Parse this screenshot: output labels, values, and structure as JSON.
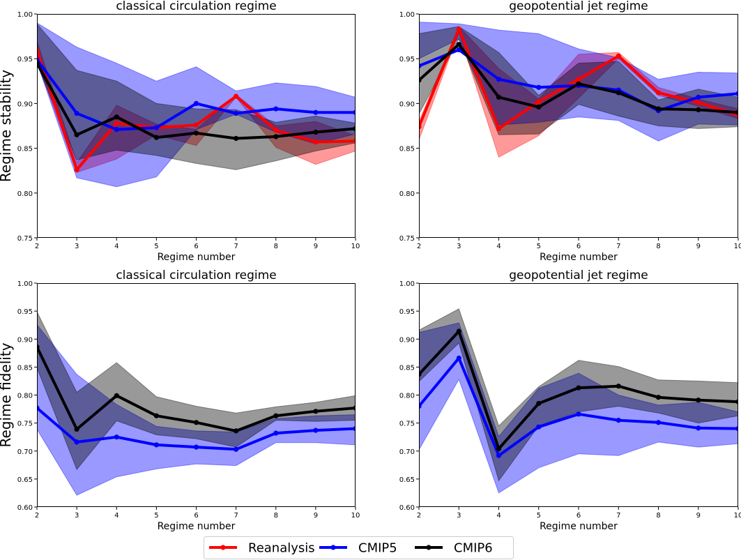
{
  "figure": {
    "legend": {
      "placement": "bottom-center",
      "entries": [
        {
          "label": "Reanalysis",
          "color": "#ff0000"
        },
        {
          "label": "CMIP5",
          "color": "#0000ff"
        },
        {
          "label": "CMIP6",
          "color": "#000000"
        }
      ]
    }
  },
  "chart_data": [
    {
      "type": "line",
      "title": "classical circulation regime",
      "xlabel": "Regime number",
      "ylabel": "Regime stability",
      "x": [
        2,
        3,
        4,
        5,
        6,
        7,
        8,
        9,
        10
      ],
      "xlim": [
        2,
        10
      ],
      "ylim": [
        0.75,
        1.0
      ],
      "xticks": [
        "2",
        "3",
        "4",
        "5",
        "6",
        "7",
        "8",
        "9",
        "10"
      ],
      "yticks": [
        "0.75",
        "0.80",
        "0.85",
        "0.90",
        "0.95",
        "1.00"
      ],
      "grid": false,
      "series": [
        {
          "name": "Reanalysis",
          "color": "#ff0000",
          "values": [
            0.959,
            0.826,
            0.878,
            0.873,
            0.876,
            0.908,
            0.87,
            0.857,
            0.858
          ],
          "band_upper": [
            0.97,
            0.834,
            0.898,
            0.877,
            0.871,
            0.91,
            0.875,
            0.88,
            0.864
          ],
          "band_lower": [
            0.948,
            0.823,
            0.838,
            0.865,
            0.853,
            0.907,
            0.851,
            0.832,
            0.847
          ]
        },
        {
          "name": "CMIP5",
          "color": "#0000ff",
          "values": [
            0.949,
            0.889,
            0.871,
            0.873,
            0.9,
            0.889,
            0.894,
            0.89,
            0.89
          ],
          "band_upper": [
            0.99,
            0.963,
            0.945,
            0.925,
            0.941,
            0.914,
            0.923,
            0.919,
            0.907
          ],
          "band_lower": [
            0.946,
            0.817,
            0.807,
            0.818,
            0.871,
            0.888,
            0.868,
            0.855,
            0.866
          ]
        },
        {
          "name": "CMIP6",
          "color": "#000000",
          "values": [
            0.945,
            0.865,
            0.885,
            0.862,
            0.867,
            0.861,
            0.863,
            0.868,
            0.872
          ],
          "band_upper": [
            0.989,
            0.937,
            0.925,
            0.9,
            0.894,
            0.893,
            0.879,
            0.886,
            0.878
          ],
          "band_lower": [
            0.944,
            0.837,
            0.848,
            0.842,
            0.833,
            0.826,
            0.836,
            0.847,
            0.856
          ]
        }
      ]
    },
    {
      "type": "line",
      "title": "geopotential jet regime",
      "xlabel": "Regime number",
      "ylabel": "",
      "x": [
        2,
        3,
        4,
        5,
        6,
        7,
        8,
        9,
        10
      ],
      "xlim": [
        2,
        10
      ],
      "ylim": [
        0.75,
        1.0
      ],
      "xticks": [
        "2",
        "3",
        "4",
        "5",
        "6",
        "7",
        "8",
        "9",
        "10"
      ],
      "yticks": [
        "0.75",
        "0.80",
        "0.85",
        "0.90",
        "0.95",
        "1.00"
      ],
      "grid": false,
      "series": [
        {
          "name": "Reanalysis",
          "color": "#ff0000",
          "values": [
            0.874,
            0.983,
            0.872,
            0.902,
            0.927,
            0.953,
            0.912,
            0.901,
            0.887
          ],
          "band_upper": [
            0.88,
            0.986,
            0.939,
            0.905,
            0.955,
            0.957,
            0.918,
            0.905,
            0.894
          ],
          "band_lower": [
            0.859,
            0.979,
            0.84,
            0.864,
            0.906,
            0.95,
            0.909,
            0.897,
            0.883
          ]
        },
        {
          "name": "CMIP5",
          "color": "#0000ff",
          "values": [
            0.942,
            0.96,
            0.927,
            0.918,
            0.92,
            0.915,
            0.892,
            0.907,
            0.911
          ],
          "band_upper": [
            0.991,
            0.989,
            0.982,
            0.978,
            0.961,
            0.951,
            0.927,
            0.935,
            0.934
          ],
          "band_lower": [
            0.95,
            0.972,
            0.876,
            0.879,
            0.885,
            0.881,
            0.858,
            0.877,
            0.876
          ]
        },
        {
          "name": "CMIP6",
          "color": "#000000",
          "values": [
            0.926,
            0.966,
            0.907,
            0.896,
            0.922,
            0.912,
            0.894,
            0.893,
            0.89
          ],
          "band_upper": [
            0.978,
            0.986,
            0.957,
            0.909,
            0.945,
            0.947,
            0.904,
            0.916,
            0.907
          ],
          "band_lower": [
            0.888,
            0.972,
            0.865,
            0.866,
            0.899,
            0.886,
            0.875,
            0.872,
            0.874
          ]
        }
      ]
    },
    {
      "type": "line",
      "title": "classical circulation regime",
      "xlabel": "Regime number",
      "ylabel": "Regime fidelity",
      "x": [
        2,
        3,
        4,
        5,
        6,
        7,
        8,
        9,
        10
      ],
      "xlim": [
        2,
        10
      ],
      "ylim": [
        0.6,
        1.0
      ],
      "xticks": [
        "2",
        "3",
        "4",
        "5",
        "6",
        "7",
        "8",
        "9",
        "10"
      ],
      "yticks": [
        "0.60",
        "0.65",
        "0.70",
        "0.75",
        "0.80",
        "0.85",
        "0.90",
        "0.95",
        "1.00"
      ],
      "grid": false,
      "series": [
        {
          "name": "CMIP5",
          "color": "#0000ff",
          "values": [
            0.777,
            0.716,
            0.725,
            0.711,
            0.707,
            0.703,
            0.732,
            0.737,
            0.74
          ],
          "band_upper": [
            0.926,
            0.837,
            0.783,
            0.744,
            0.736,
            0.734,
            0.758,
            0.763,
            0.765
          ],
          "band_lower": [
            0.739,
            0.621,
            0.654,
            0.668,
            0.677,
            0.674,
            0.715,
            0.715,
            0.711
          ]
        },
        {
          "name": "CMIP6",
          "color": "#000000",
          "values": [
            0.886,
            0.739,
            0.799,
            0.763,
            0.751,
            0.736,
            0.763,
            0.771,
            0.777
          ],
          "band_upper": [
            0.949,
            0.805,
            0.858,
            0.797,
            0.78,
            0.768,
            0.779,
            0.787,
            0.799
          ],
          "band_lower": [
            0.849,
            0.667,
            0.754,
            0.729,
            0.722,
            0.707,
            0.755,
            0.753,
            0.755
          ]
        }
      ]
    },
    {
      "type": "line",
      "title": "geopotential jet regime",
      "xlabel": "Regime number",
      "ylabel": "",
      "x": [
        2,
        3,
        4,
        5,
        6,
        7,
        8,
        9,
        10
      ],
      "xlim": [
        2,
        10
      ],
      "ylim": [
        0.6,
        1.0
      ],
      "xticks": [
        "2",
        "3",
        "4",
        "5",
        "6",
        "7",
        "8",
        "9",
        "10"
      ],
      "yticks": [
        "0.60",
        "0.65",
        "0.70",
        "0.75",
        "0.80",
        "0.85",
        "0.90",
        "0.95",
        "1.00"
      ],
      "grid": false,
      "series": [
        {
          "name": "CMIP5",
          "color": "#0000ff",
          "values": [
            0.78,
            0.866,
            0.692,
            0.743,
            0.766,
            0.755,
            0.751,
            0.741,
            0.74
          ],
          "band_upper": [
            0.912,
            0.929,
            0.726,
            0.812,
            0.839,
            0.8,
            0.782,
            0.787,
            0.77
          ],
          "band_lower": [
            0.702,
            0.828,
            0.625,
            0.67,
            0.695,
            0.692,
            0.716,
            0.707,
            0.713
          ]
        },
        {
          "name": "CMIP6",
          "color": "#000000",
          "values": [
            0.837,
            0.914,
            0.704,
            0.785,
            0.813,
            0.816,
            0.796,
            0.791,
            0.788
          ],
          "band_upper": [
            0.916,
            0.954,
            0.745,
            0.815,
            0.862,
            0.851,
            0.827,
            0.825,
            0.822
          ],
          "band_lower": [
            0.824,
            0.893,
            0.647,
            0.745,
            0.77,
            0.78,
            0.768,
            0.75,
            0.763
          ]
        }
      ]
    }
  ]
}
